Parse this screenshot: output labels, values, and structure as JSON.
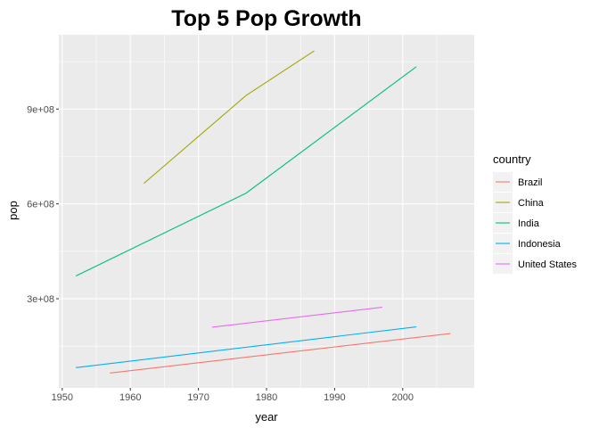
{
  "chart_data": {
    "type": "line",
    "title": "Top 5 Pop Growth",
    "xlabel": "year",
    "ylabel": "pop",
    "xlim": [
      1949.5,
      2010.5
    ],
    "ylim": [
      18000000,
      1135000000
    ],
    "x_ticks": [
      1950,
      1960,
      1970,
      1980,
      1990,
      2000
    ],
    "y_ticks": [
      300000000,
      600000000,
      900000000
    ],
    "y_tick_labels": [
      "3e+08",
      "6e+08",
      "9e+08"
    ],
    "grid": true,
    "legend": {
      "title": "country",
      "position": "right"
    },
    "series": [
      {
        "name": "Brazil",
        "color": "#F8766D",
        "x": [
          1957,
          2007
        ],
        "y": [
          65000000,
          190000000
        ]
      },
      {
        "name": "China",
        "color": "#A3A500",
        "x": [
          1962,
          1977,
          1987
        ],
        "y": [
          665000000,
          943000000,
          1084000000
        ]
      },
      {
        "name": "India",
        "color": "#00BF7D",
        "x": [
          1952,
          1977,
          2002
        ],
        "y": [
          372000000,
          634000000,
          1034000000
        ]
      },
      {
        "name": "Indonesia",
        "color": "#00B0F6",
        "x": [
          1952,
          2002
        ],
        "y": [
          82000000,
          211000000
        ]
      },
      {
        "name": "United States",
        "color": "#E76BF3",
        "x": [
          1972,
          1997
        ],
        "y": [
          210000000,
          273000000
        ]
      }
    ]
  }
}
